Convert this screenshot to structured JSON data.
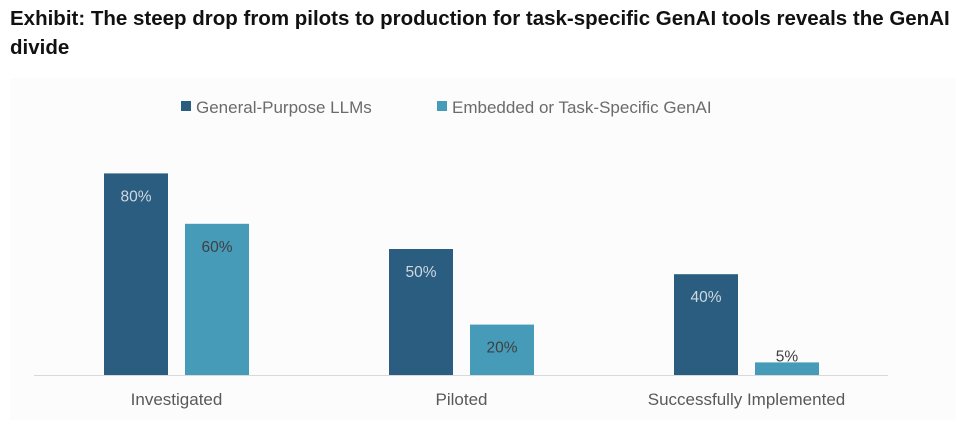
{
  "chart_data": {
    "type": "bar",
    "title": "Exhibit: The steep drop from pilots to production for task-specific GenAI tools reveals the GenAI divide",
    "categories": [
      "Investigated",
      "Piloted",
      "Successfully Implemented"
    ],
    "series": [
      {
        "name": "General-Purpose LLMs",
        "values": [
          80,
          50,
          40
        ],
        "labels": [
          "80%",
          "50%",
          "40%"
        ],
        "color": "#2a5d80"
      },
      {
        "name": "Embedded or Task-Specific GenAI",
        "values": [
          60,
          20,
          5
        ],
        "labels": [
          "60%",
          "20%",
          "5%"
        ],
        "color": "#469bb8"
      }
    ],
    "ylim": [
      0,
      100
    ],
    "xlabel": "",
    "ylabel": "",
    "grid": false,
    "legend": "top-center"
  }
}
